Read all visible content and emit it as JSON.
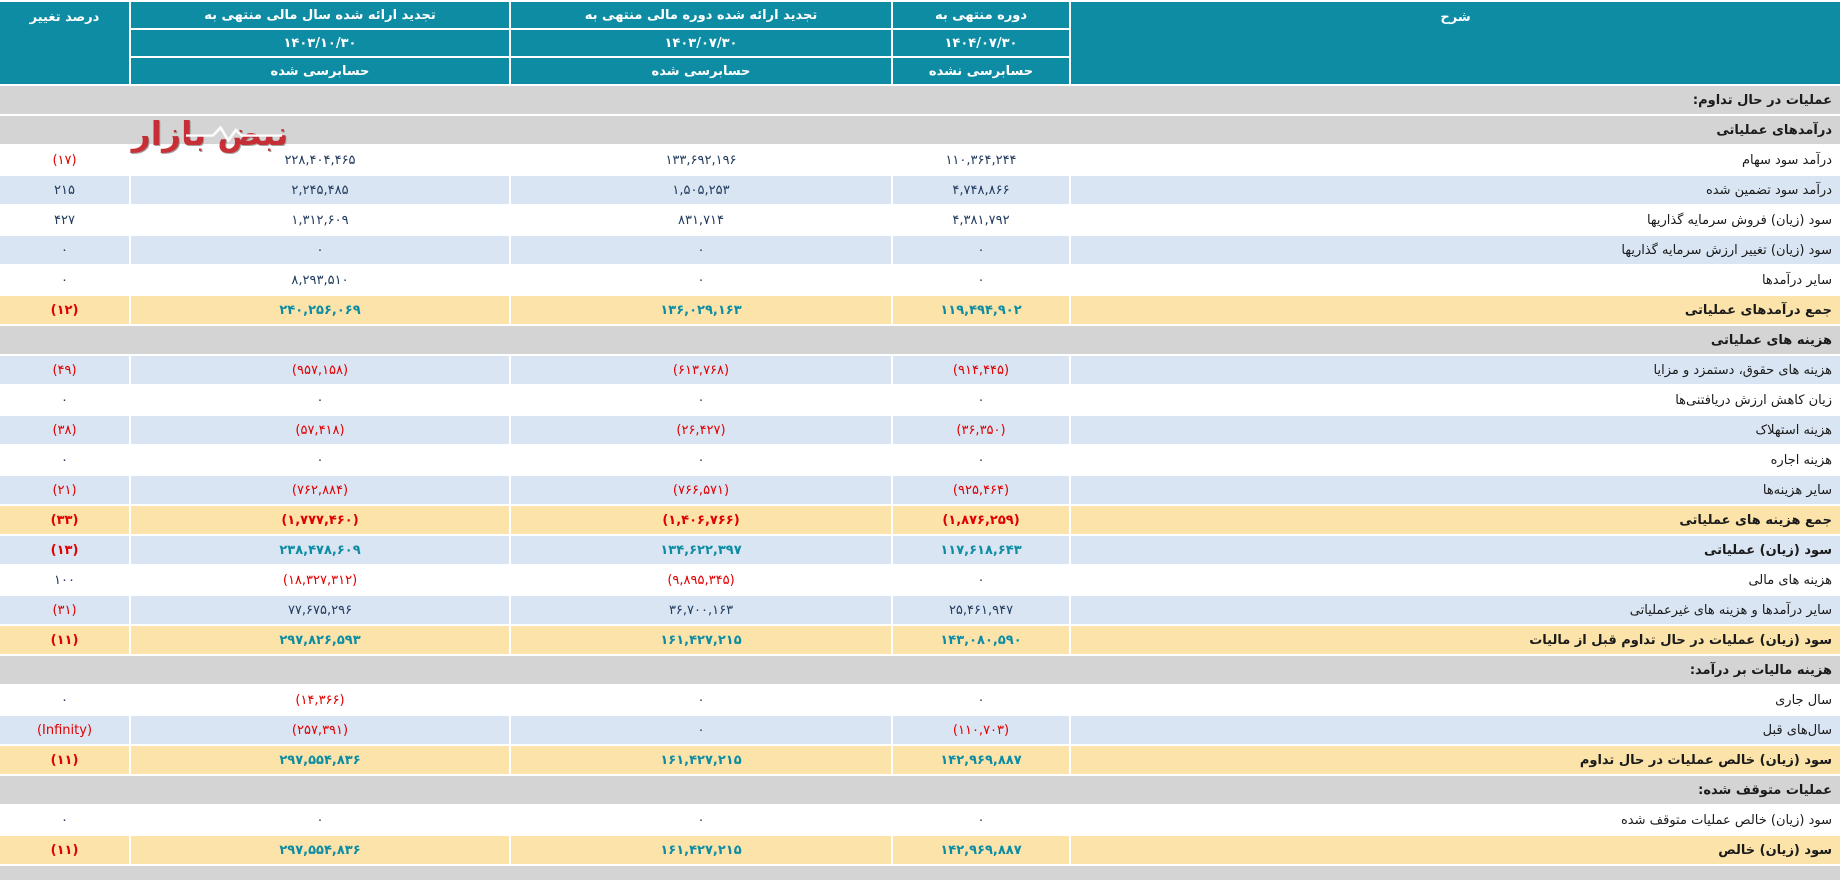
{
  "colors": {
    "header_bg": "#0d8ca3",
    "row_blue": "#d9e5f3",
    "row_gray": "#d4d4d4",
    "row_yellow": "#fbe3a9",
    "negative_text": "#e00000",
    "number_text": "#223c5f",
    "total_number_text": "#0d8ca3"
  },
  "watermark": {
    "text": "نبض بازار"
  },
  "header": {
    "description": "شرح",
    "percent_change": "درصد تغییر",
    "cols": [
      {
        "title": "دوره منتهی به",
        "date": "۱۴۰۴/۰۷/۳۰",
        "audit": "حسابرسی نشده"
      },
      {
        "title": "تجدید ارائه شده دوره مالی منتهی به",
        "date": "۱۴۰۳/۰۷/۳۰",
        "audit": "حسابرسی شده"
      },
      {
        "title": "تجدید ارائه شده سال مالی منتهی به",
        "date": "۱۴۰۳/۱۰/۳۰",
        "audit": "حسابرسی شده"
      }
    ]
  },
  "rows": [
    {
      "type": "section",
      "label": "عملیات در حال تداوم:"
    },
    {
      "type": "section",
      "label": "درآمدهای عملیاتی"
    },
    {
      "type": "data",
      "bg": "white",
      "total": false,
      "label": "درآمد سود سهام",
      "values": [
        "۱۱۰,۳۶۴,۲۴۴",
        "۱۳۳,۶۹۲,۱۹۶",
        "۲۲۸,۴۰۴,۴۶۵",
        "(۱۷)"
      ]
    },
    {
      "type": "data",
      "bg": "blue",
      "total": false,
      "label": "درآمد سود تضمین شده",
      "values": [
        "۴,۷۴۸,۸۶۶",
        "۱,۵۰۵,۲۵۳",
        "۲,۲۴۵,۴۸۵",
        "۲۱۵"
      ]
    },
    {
      "type": "data",
      "bg": "white",
      "total": false,
      "label": "سود (زیان) فروش سرمایه گذاریها",
      "values": [
        "۴,۳۸۱,۷۹۲",
        "۸۳۱,۷۱۴",
        "۱,۳۱۲,۶۰۹",
        "۴۲۷"
      ]
    },
    {
      "type": "data",
      "bg": "blue",
      "total": false,
      "label": "سود (زیان) تغییر ارزش سرمایه گذاریها",
      "values": [
        "۰",
        "۰",
        "۰",
        "۰"
      ]
    },
    {
      "type": "data",
      "bg": "white",
      "total": false,
      "label": "سایر درآمدها",
      "values": [
        "۰",
        "۰",
        "۸,۲۹۳,۵۱۰",
        "۰"
      ]
    },
    {
      "type": "data",
      "bg": "yellow",
      "total": true,
      "label": "جمع درآمدهای عملیاتی",
      "values": [
        "۱۱۹,۴۹۴,۹۰۲",
        "۱۳۶,۰۲۹,۱۶۳",
        "۲۴۰,۲۵۶,۰۶۹",
        "(۱۲)"
      ]
    },
    {
      "type": "section",
      "label": "هزینه های عملیاتی"
    },
    {
      "type": "data",
      "bg": "blue",
      "total": false,
      "label": "هزینه های حقوق، دستمزد و مزایا",
      "values": [
        "(۹۱۴,۴۴۵)",
        "(۶۱۳,۷۶۸)",
        "(۹۵۷,۱۵۸)",
        "(۴۹)"
      ]
    },
    {
      "type": "data",
      "bg": "white",
      "total": false,
      "label": "زیان کاهش ارزش دریافتنی‌ها",
      "values": [
        "۰",
        "۰",
        "۰",
        "۰"
      ]
    },
    {
      "type": "data",
      "bg": "blue",
      "total": false,
      "label": "هزینه استهلاک",
      "values": [
        "(۳۶,۳۵۰)",
        "(۲۶,۴۲۷)",
        "(۵۷,۴۱۸)",
        "(۳۸)"
      ]
    },
    {
      "type": "data",
      "bg": "white",
      "total": false,
      "label": "هزینه اجاره",
      "values": [
        "۰",
        "۰",
        "۰",
        "۰"
      ]
    },
    {
      "type": "data",
      "bg": "blue",
      "total": false,
      "label": "سایر هزینه‌ها",
      "values": [
        "(۹۲۵,۴۶۴)",
        "(۷۶۶,۵۷۱)",
        "(۷۶۲,۸۸۴)",
        "(۲۱)"
      ]
    },
    {
      "type": "data",
      "bg": "yellow",
      "total": true,
      "label": "جمع هزینه های عملیاتی",
      "values": [
        "(۱,۸۷۶,۲۵۹)",
        "(۱,۴۰۶,۷۶۶)",
        "(۱,۷۷۷,۴۶۰)",
        "(۳۳)"
      ]
    },
    {
      "type": "data",
      "bg": "blue",
      "total": true,
      "label": "سود (زیان) عملیاتی",
      "values": [
        "۱۱۷,۶۱۸,۶۴۳",
        "۱۳۴,۶۲۲,۳۹۷",
        "۲۳۸,۴۷۸,۶۰۹",
        "(۱۳)"
      ]
    },
    {
      "type": "data",
      "bg": "white",
      "total": false,
      "label": "هزینه های مالی",
      "values": [
        "۰",
        "(۹,۸۹۵,۳۴۵)",
        "(۱۸,۳۲۷,۳۱۲)",
        "۱۰۰"
      ]
    },
    {
      "type": "data",
      "bg": "blue",
      "total": false,
      "label": "سایر درآمدها و هزینه های غیرعملیاتی",
      "values": [
        "۲۵,۴۶۱,۹۴۷",
        "۳۶,۷۰۰,۱۶۳",
        "۷۷,۶۷۵,۲۹۶",
        "(۳۱)"
      ]
    },
    {
      "type": "data",
      "bg": "yellow",
      "total": true,
      "label": "سود (زیان) عملیات در حال تداوم قبل از مالیات",
      "values": [
        "۱۴۳,۰۸۰,۵۹۰",
        "۱۶۱,۴۲۷,۲۱۵",
        "۲۹۷,۸۲۶,۵۹۳",
        "(۱۱)"
      ]
    },
    {
      "type": "section",
      "label": "هزینه مالیات بر درآمد:"
    },
    {
      "type": "data",
      "bg": "white",
      "total": false,
      "label": "سال جاری",
      "values": [
        "۰",
        "۰",
        "(۱۴,۳۶۶)",
        "۰"
      ]
    },
    {
      "type": "data",
      "bg": "blue",
      "total": false,
      "label": "سال‌های قبل",
      "values": [
        "(۱۱۰,۷۰۳)",
        "۰",
        "(۲۵۷,۳۹۱)",
        "(Infinity)"
      ]
    },
    {
      "type": "data",
      "bg": "yellow",
      "total": true,
      "label": "سود (زیان) خالص عملیات در حال تداوم",
      "values": [
        "۱۴۲,۹۶۹,۸۸۷",
        "۱۶۱,۴۲۷,۲۱۵",
        "۲۹۷,۵۵۴,۸۳۶",
        "(۱۱)"
      ]
    },
    {
      "type": "section",
      "label": "عملیات متوقف شده:"
    },
    {
      "type": "data",
      "bg": "white",
      "total": false,
      "label": "سود (زیان) خالص عملیات متوقف شده",
      "values": [
        "۰",
        "۰",
        "۰",
        "۰"
      ]
    },
    {
      "type": "data",
      "bg": "yellow",
      "total": true,
      "label": "سود (زیان) خالص",
      "values": [
        "۱۴۲,۹۶۹,۸۸۷",
        "۱۶۱,۴۲۷,۲۱۵",
        "۲۹۷,۵۵۴,۸۳۶",
        "(۱۱)"
      ]
    },
    {
      "type": "section",
      "label": ""
    }
  ]
}
